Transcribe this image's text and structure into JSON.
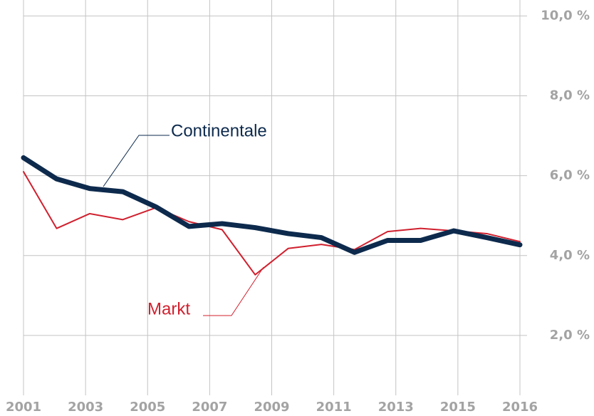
{
  "chart_data": {
    "type": "line",
    "x": [
      2001,
      2002,
      2003,
      2004,
      2005,
      2006,
      2007,
      2008,
      2009,
      2010,
      2011,
      2012,
      2013,
      2014,
      2015,
      2016
    ],
    "xlim": [
      2001,
      2016
    ],
    "xtick_labels": [
      "2001",
      "2003",
      "2005",
      "2007",
      "2009",
      "2011",
      "2013",
      "2015",
      "2016"
    ],
    "series": [
      {
        "name": "Markt",
        "color": "#d0202e",
        "values": [
          6.1,
          4.68,
          5.05,
          4.9,
          5.2,
          4.85,
          4.65,
          3.52,
          4.18,
          4.28,
          4.15,
          4.6,
          4.68,
          4.62,
          4.55,
          4.35
        ]
      },
      {
        "name": "Continentale",
        "color": "#0d2a4d",
        "values": [
          6.45,
          5.92,
          5.68,
          5.6,
          5.22,
          4.73,
          4.8,
          4.7,
          4.55,
          4.45,
          4.08,
          4.38,
          4.38,
          4.62,
          4.45,
          4.27
        ]
      }
    ],
    "ylim": [
      0.5,
      10.4
    ],
    "yticks": [
      {
        "value": 2,
        "label": "2,0 %"
      },
      {
        "value": 4,
        "label": "4,0 %"
      },
      {
        "value": 6,
        "label": "6,0 %"
      },
      {
        "value": 8,
        "label": "8,0 %"
      },
      {
        "value": 10,
        "label": "10,0 %"
      }
    ],
    "grid": true
  }
}
